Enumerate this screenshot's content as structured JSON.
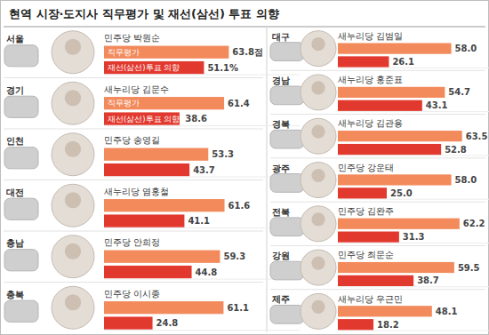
{
  "title": "현역 시장·도지사 직무평가 및 재선(삼선) 투표 의향",
  "chart_data": [
    {
      "type": "bar",
      "title": "서울",
      "subtitle": "민주당 박원순",
      "orientation": "horizontal",
      "categories": [
        "직무평가",
        "재선(삼선)투표 의향"
      ],
      "values": [
        63.8,
        51.1
      ],
      "value_labels": [
        "63.8점",
        "51.1%"
      ],
      "colors": [
        "#f28a5c",
        "#e2392f"
      ],
      "xlim": [
        0,
        100
      ],
      "data_labels": true,
      "tick_labels": false
    },
    {
      "type": "bar",
      "title": "경기",
      "subtitle": "새누리당 김문수",
      "orientation": "horizontal",
      "categories": [
        "직무평가",
        "재선(삼선)투표 의향"
      ],
      "values": [
        61.4,
        38.6
      ],
      "colors": [
        "#f28a5c",
        "#e2392f"
      ],
      "xlim": [
        0,
        100
      ],
      "data_labels": true,
      "tick_labels": false
    },
    {
      "type": "bar",
      "title": "인천",
      "subtitle": "민주당 송영길",
      "orientation": "horizontal",
      "categories": [
        null,
        null
      ],
      "values": [
        53.3,
        43.7
      ],
      "colors": [
        "#f28a5c",
        "#e2392f"
      ],
      "xlim": [
        0,
        100
      ],
      "data_labels": true,
      "tick_labels": false
    },
    {
      "type": "bar",
      "title": "대전",
      "subtitle": "새누리당 염홍철",
      "orientation": "horizontal",
      "categories": [
        null,
        null
      ],
      "values": [
        61.6,
        41.1
      ],
      "colors": [
        "#f28a5c",
        "#e2392f"
      ],
      "xlim": [
        0,
        100
      ],
      "data_labels": true,
      "tick_labels": false
    },
    {
      "type": "bar",
      "title": "충남",
      "subtitle": "민주당 안희정",
      "orientation": "horizontal",
      "categories": [
        null,
        null
      ],
      "values": [
        59.3,
        44.8
      ],
      "colors": [
        "#f28a5c",
        "#e2392f"
      ],
      "xlim": [
        0,
        100
      ],
      "data_labels": true,
      "tick_labels": false
    },
    {
      "type": "bar",
      "title": "충북",
      "subtitle": "민주당 이시종",
      "orientation": "horizontal",
      "categories": [
        null,
        null
      ],
      "values": [
        61.1,
        24.8
      ],
      "colors": [
        "#f28a5c",
        "#e2392f"
      ],
      "xlim": [
        0,
        100
      ],
      "data_labels": true,
      "tick_labels": false
    },
    {
      "type": "bar",
      "title": "대구",
      "subtitle": "새누리당 김범일",
      "orientation": "horizontal",
      "categories": [
        null,
        null
      ],
      "values": [
        58.0,
        26.1
      ],
      "value_labels": [
        "58.0",
        "26.1"
      ],
      "colors": [
        "#f28a5c",
        "#e2392f"
      ],
      "xlim": [
        0,
        100
      ],
      "data_labels": true,
      "tick_labels": false
    },
    {
      "type": "bar",
      "title": "경남",
      "subtitle": "새누리당 홍준표",
      "orientation": "horizontal",
      "categories": [
        null,
        null
      ],
      "values": [
        54.7,
        43.1
      ],
      "colors": [
        "#f28a5c",
        "#e2392f"
      ],
      "xlim": [
        0,
        100
      ],
      "data_labels": true,
      "tick_labels": false
    },
    {
      "type": "bar",
      "title": "경북",
      "subtitle": "새누리당 김관용",
      "orientation": "horizontal",
      "categories": [
        null,
        null
      ],
      "values": [
        63.5,
        52.8
      ],
      "colors": [
        "#f28a5c",
        "#e2392f"
      ],
      "xlim": [
        0,
        100
      ],
      "data_labels": true,
      "tick_labels": false
    },
    {
      "type": "bar",
      "title": "광주",
      "subtitle": "민주당 강운태",
      "orientation": "horizontal",
      "categories": [
        null,
        null
      ],
      "values": [
        58.0,
        25.0
      ],
      "value_labels": [
        "58.0",
        "25.0"
      ],
      "colors": [
        "#f28a5c",
        "#e2392f"
      ],
      "xlim": [
        0,
        100
      ],
      "data_labels": true,
      "tick_labels": false
    },
    {
      "type": "bar",
      "title": "전북",
      "subtitle": "민주당 김완주",
      "orientation": "horizontal",
      "categories": [
        null,
        null
      ],
      "values": [
        62.2,
        31.3
      ],
      "colors": [
        "#f28a5c",
        "#e2392f"
      ],
      "xlim": [
        0,
        100
      ],
      "data_labels": true,
      "tick_labels": false
    },
    {
      "type": "bar",
      "title": "강원",
      "subtitle": "민주당 최문순",
      "orientation": "horizontal",
      "categories": [
        null,
        null
      ],
      "values": [
        59.5,
        38.7
      ],
      "colors": [
        "#f28a5c",
        "#e2392f"
      ],
      "xlim": [
        0,
        100
      ],
      "data_labels": true,
      "tick_labels": false
    },
    {
      "type": "bar",
      "title": "제주",
      "subtitle": "새누리당 우근민",
      "orientation": "horizontal",
      "categories": [
        null,
        null
      ],
      "values": [
        48.1,
        18.2
      ],
      "colors": [
        "#f28a5c",
        "#e2392f"
      ],
      "xlim": [
        0,
        100
      ],
      "data_labels": true,
      "tick_labels": false
    }
  ]
}
